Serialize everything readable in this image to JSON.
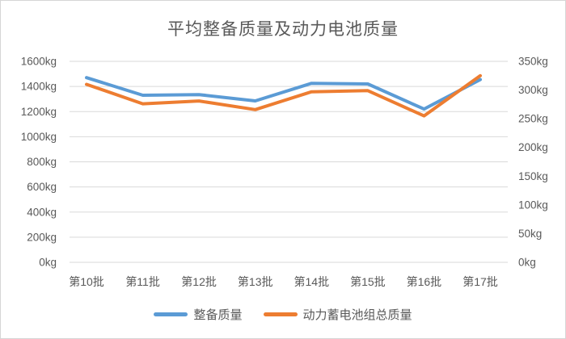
{
  "frame": {
    "background": "#ffffff",
    "border_color": "#d6d6d6"
  },
  "chart_data": {
    "type": "line",
    "title": "平均整备质量及动力电池质量",
    "categories": [
      "第10批",
      "第11批",
      "第12批",
      "第13批",
      "第14批",
      "第15批",
      "第16批",
      "第17批"
    ],
    "series": [
      {
        "name": "整备质量",
        "axis": "left",
        "color": "#5b9bd5",
        "values": [
          1470,
          1330,
          1335,
          1285,
          1425,
          1420,
          1220,
          1455
        ]
      },
      {
        "name": "动力蓄电池组总质量",
        "axis": "right",
        "color": "#ed7d31",
        "values": [
          310,
          276,
          281,
          266,
          297,
          299,
          255,
          325
        ]
      }
    ],
    "left_axis": {
      "min": 0,
      "max": 1600,
      "step": 200,
      "tick_labels": [
        "0kg",
        "200kg",
        "400kg",
        "600kg",
        "800kg",
        "1000kg",
        "1200kg",
        "1400kg",
        "1600kg"
      ]
    },
    "right_axis": {
      "min": 0,
      "max": 350,
      "step": 50,
      "tick_labels": [
        "0kg",
        "50kg",
        "100kg",
        "150kg",
        "200kg",
        "250kg",
        "300kg",
        "350kg"
      ]
    },
    "grid": true,
    "legend_position": "bottom",
    "text_color": "#595959",
    "grid_color": "#d9d9d9",
    "line_width": 4
  }
}
